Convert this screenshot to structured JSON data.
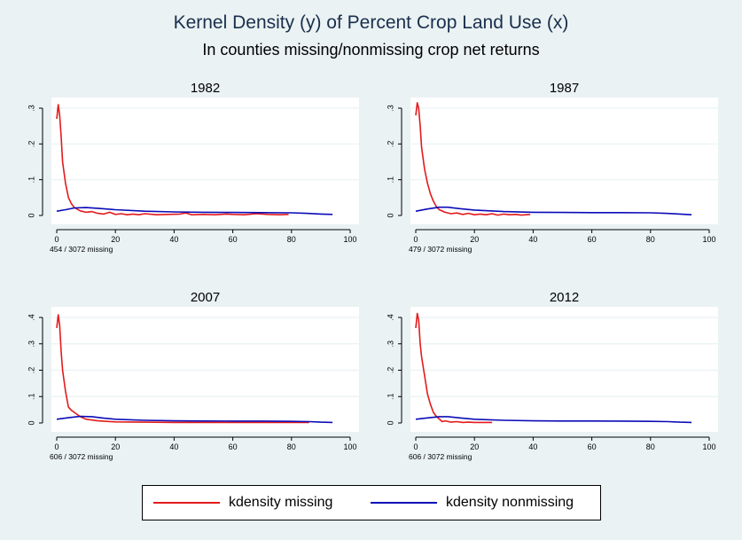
{
  "title": "Kernel Density (y) of Percent Crop Land Use (x)",
  "subtitle": "In counties missing/nonmissing crop net returns",
  "colors": {
    "missing": "#e31a1c",
    "nonmissing": "#0b0bb8",
    "background": "#eaf2f3",
    "plot_bg": "#ffffff"
  },
  "legend": {
    "position": "bottom",
    "items": [
      {
        "label": "kdensity missing",
        "color": "#e31a1c"
      },
      {
        "label": "kdensity nonmissing",
        "color": "#0b0bb8"
      }
    ]
  },
  "chart_data": [
    {
      "type": "line",
      "title": "1982",
      "note": "454 / 3072 missing",
      "xlim": [
        0,
        100
      ],
      "ylim": [
        0,
        0.3
      ],
      "xticks": [
        0,
        20,
        40,
        60,
        80,
        100
      ],
      "xtick_labels": [
        "0",
        "20",
        "40",
        "60",
        "80",
        "100"
      ],
      "yticks": [
        0,
        0.1,
        0.2,
        0.3
      ],
      "ytick_labels": [
        "0",
        ".1",
        ".2",
        ".3"
      ],
      "grid": true,
      "series": [
        {
          "name": "kdensity missing",
          "color": "#e31a1c",
          "points": [
            [
              0,
              0.27
            ],
            [
              0.5,
              0.31
            ],
            [
              1,
              0.28
            ],
            [
              1.5,
              0.22
            ],
            [
              2,
              0.15
            ],
            [
              3,
              0.09
            ],
            [
              4,
              0.05
            ],
            [
              5,
              0.033
            ],
            [
              6,
              0.022
            ],
            [
              8,
              0.013
            ],
            [
              10,
              0.009
            ],
            [
              12,
              0.011
            ],
            [
              14,
              0.006
            ],
            [
              16,
              0.004
            ],
            [
              18,
              0.009
            ],
            [
              20,
              0.003
            ],
            [
              22,
              0.005
            ],
            [
              24,
              0.002
            ],
            [
              26,
              0.004
            ],
            [
              28,
              0.002
            ],
            [
              30,
              0.005
            ],
            [
              34,
              0.002
            ],
            [
              38,
              0.003
            ],
            [
              42,
              0.004
            ],
            [
              44,
              0.007
            ],
            [
              46,
              0.002
            ],
            [
              50,
              0.003
            ],
            [
              54,
              0.002
            ],
            [
              58,
              0.004
            ],
            [
              60,
              0.003
            ],
            [
              64,
              0.002
            ],
            [
              68,
              0.005
            ],
            [
              72,
              0.003
            ],
            [
              76,
              0.002
            ],
            [
              79,
              0.003
            ]
          ]
        },
        {
          "name": "kdensity nonmissing",
          "color": "#0b0bb8",
          "points": [
            [
              0,
              0.012
            ],
            [
              3,
              0.016
            ],
            [
              6,
              0.021
            ],
            [
              10,
              0.022
            ],
            [
              14,
              0.02
            ],
            [
              20,
              0.016
            ],
            [
              30,
              0.012
            ],
            [
              40,
              0.01
            ],
            [
              50,
              0.009
            ],
            [
              60,
              0.0085
            ],
            [
              70,
              0.008
            ],
            [
              80,
              0.0075
            ],
            [
              85,
              0.006
            ],
            [
              90,
              0.004
            ],
            [
              94,
              0.003
            ]
          ]
        }
      ]
    },
    {
      "type": "line",
      "title": "1987",
      "note": "479 / 3072 missing",
      "xlim": [
        0,
        100
      ],
      "ylim": [
        0,
        0.3
      ],
      "xticks": [
        0,
        20,
        40,
        60,
        80,
        100
      ],
      "xtick_labels": [
        "0",
        "20",
        "40",
        "60",
        "80",
        "100"
      ],
      "yticks": [
        0,
        0.1,
        0.2,
        0.3
      ],
      "ytick_labels": [
        "0",
        ".1",
        ".2",
        ".3"
      ],
      "grid": true,
      "series": [
        {
          "name": "kdensity missing",
          "color": "#e31a1c",
          "points": [
            [
              0,
              0.28
            ],
            [
              0.5,
              0.315
            ],
            [
              1,
              0.3
            ],
            [
              1.5,
              0.25
            ],
            [
              2,
              0.19
            ],
            [
              3,
              0.13
            ],
            [
              4,
              0.09
            ],
            [
              5,
              0.06
            ],
            [
              6,
              0.04
            ],
            [
              7,
              0.025
            ],
            [
              8,
              0.016
            ],
            [
              10,
              0.009
            ],
            [
              12,
              0.005
            ],
            [
              14,
              0.007
            ],
            [
              16,
              0.003
            ],
            [
              18,
              0.006
            ],
            [
              20,
              0.002
            ],
            [
              22,
              0.004
            ],
            [
              24,
              0.002
            ],
            [
              26,
              0.005
            ],
            [
              28,
              0.001
            ],
            [
              30,
              0.004
            ],
            [
              32,
              0.002
            ],
            [
              34,
              0.003
            ],
            [
              36,
              0.001
            ],
            [
              39,
              0.003
            ]
          ]
        },
        {
          "name": "kdensity nonmissing",
          "color": "#0b0bb8",
          "points": [
            [
              0,
              0.012
            ],
            [
              4,
              0.018
            ],
            [
              8,
              0.023
            ],
            [
              11,
              0.023
            ],
            [
              15,
              0.019
            ],
            [
              20,
              0.015
            ],
            [
              30,
              0.011
            ],
            [
              40,
              0.009
            ],
            [
              50,
              0.0085
            ],
            [
              60,
              0.008
            ],
            [
              70,
              0.008
            ],
            [
              80,
              0.0075
            ],
            [
              85,
              0.006
            ],
            [
              90,
              0.004
            ],
            [
              94,
              0.002
            ]
          ]
        }
      ]
    },
    {
      "type": "line",
      "title": "2007",
      "note": "606 / 3072 missing",
      "xlim": [
        0,
        100
      ],
      "ylim": [
        0,
        0.4
      ],
      "xticks": [
        0,
        20,
        40,
        60,
        80,
        100
      ],
      "xtick_labels": [
        "0",
        "20",
        "40",
        "60",
        "80",
        "100"
      ],
      "yticks": [
        0,
        0.1,
        0.2,
        0.3,
        0.4
      ],
      "ytick_labels": [
        "0",
        ".1",
        ".2",
        ".3",
        ".4"
      ],
      "grid": true,
      "series": [
        {
          "name": "kdensity missing",
          "color": "#e31a1c",
          "points": [
            [
              0,
              0.36
            ],
            [
              0.5,
              0.41
            ],
            [
              1,
              0.37
            ],
            [
              1.5,
              0.27
            ],
            [
              2,
              0.2
            ],
            [
              3,
              0.12
            ],
            [
              4,
              0.06
            ],
            [
              5,
              0.048
            ],
            [
              6,
              0.04
            ],
            [
              8,
              0.024
            ],
            [
              10,
              0.014
            ],
            [
              14,
              0.008
            ],
            [
              20,
              0.004
            ],
            [
              30,
              0.003
            ],
            [
              40,
              0.002
            ],
            [
              50,
              0.002
            ],
            [
              60,
              0.002
            ],
            [
              70,
              0.002
            ],
            [
              80,
              0.002
            ],
            [
              86,
              0.002
            ]
          ]
        },
        {
          "name": "kdensity nonmissing",
          "color": "#0b0bb8",
          "points": [
            [
              0,
              0.014
            ],
            [
              4,
              0.02
            ],
            [
              8,
              0.025
            ],
            [
              12,
              0.024
            ],
            [
              16,
              0.018
            ],
            [
              20,
              0.014
            ],
            [
              30,
              0.01
            ],
            [
              40,
              0.008
            ],
            [
              50,
              0.0075
            ],
            [
              60,
              0.007
            ],
            [
              70,
              0.007
            ],
            [
              80,
              0.006
            ],
            [
              86,
              0.005
            ],
            [
              90,
              0.003
            ],
            [
              94,
              0.002
            ]
          ]
        }
      ]
    },
    {
      "type": "line",
      "title": "2012",
      "note": "606 / 3072 missing",
      "xlim": [
        0,
        100
      ],
      "ylim": [
        0,
        0.4
      ],
      "xticks": [
        0,
        20,
        40,
        60,
        80,
        100
      ],
      "xtick_labels": [
        "0",
        "20",
        "40",
        "60",
        "80",
        "100"
      ],
      "yticks": [
        0,
        0.1,
        0.2,
        0.3,
        0.4
      ],
      "ytick_labels": [
        "0",
        ".1",
        ".2",
        ".3",
        ".4"
      ],
      "grid": true,
      "series": [
        {
          "name": "kdensity missing",
          "color": "#e31a1c",
          "points": [
            [
              0,
              0.36
            ],
            [
              0.5,
              0.415
            ],
            [
              1,
              0.39
            ],
            [
              1.5,
              0.3
            ],
            [
              2,
              0.25
            ],
            [
              3,
              0.18
            ],
            [
              4,
              0.11
            ],
            [
              5,
              0.07
            ],
            [
              6,
              0.04
            ],
            [
              7,
              0.025
            ],
            [
              8,
              0.015
            ],
            [
              9,
              0.005
            ],
            [
              10,
              0.008
            ],
            [
              12,
              0.003
            ],
            [
              14,
              0.005
            ],
            [
              16,
              0.002
            ],
            [
              18,
              0.003
            ],
            [
              20,
              0.002
            ],
            [
              22,
              0.002
            ],
            [
              26,
              0.002
            ]
          ]
        },
        {
          "name": "kdensity nonmissing",
          "color": "#0b0bb8",
          "points": [
            [
              0,
              0.014
            ],
            [
              4,
              0.019
            ],
            [
              8,
              0.024
            ],
            [
              11,
              0.024
            ],
            [
              15,
              0.019
            ],
            [
              20,
              0.014
            ],
            [
              30,
              0.01
            ],
            [
              40,
              0.008
            ],
            [
              50,
              0.0075
            ],
            [
              60,
              0.0075
            ],
            [
              70,
              0.007
            ],
            [
              80,
              0.006
            ],
            [
              86,
              0.005
            ],
            [
              90,
              0.003
            ],
            [
              94,
              0.002
            ]
          ]
        }
      ]
    }
  ]
}
